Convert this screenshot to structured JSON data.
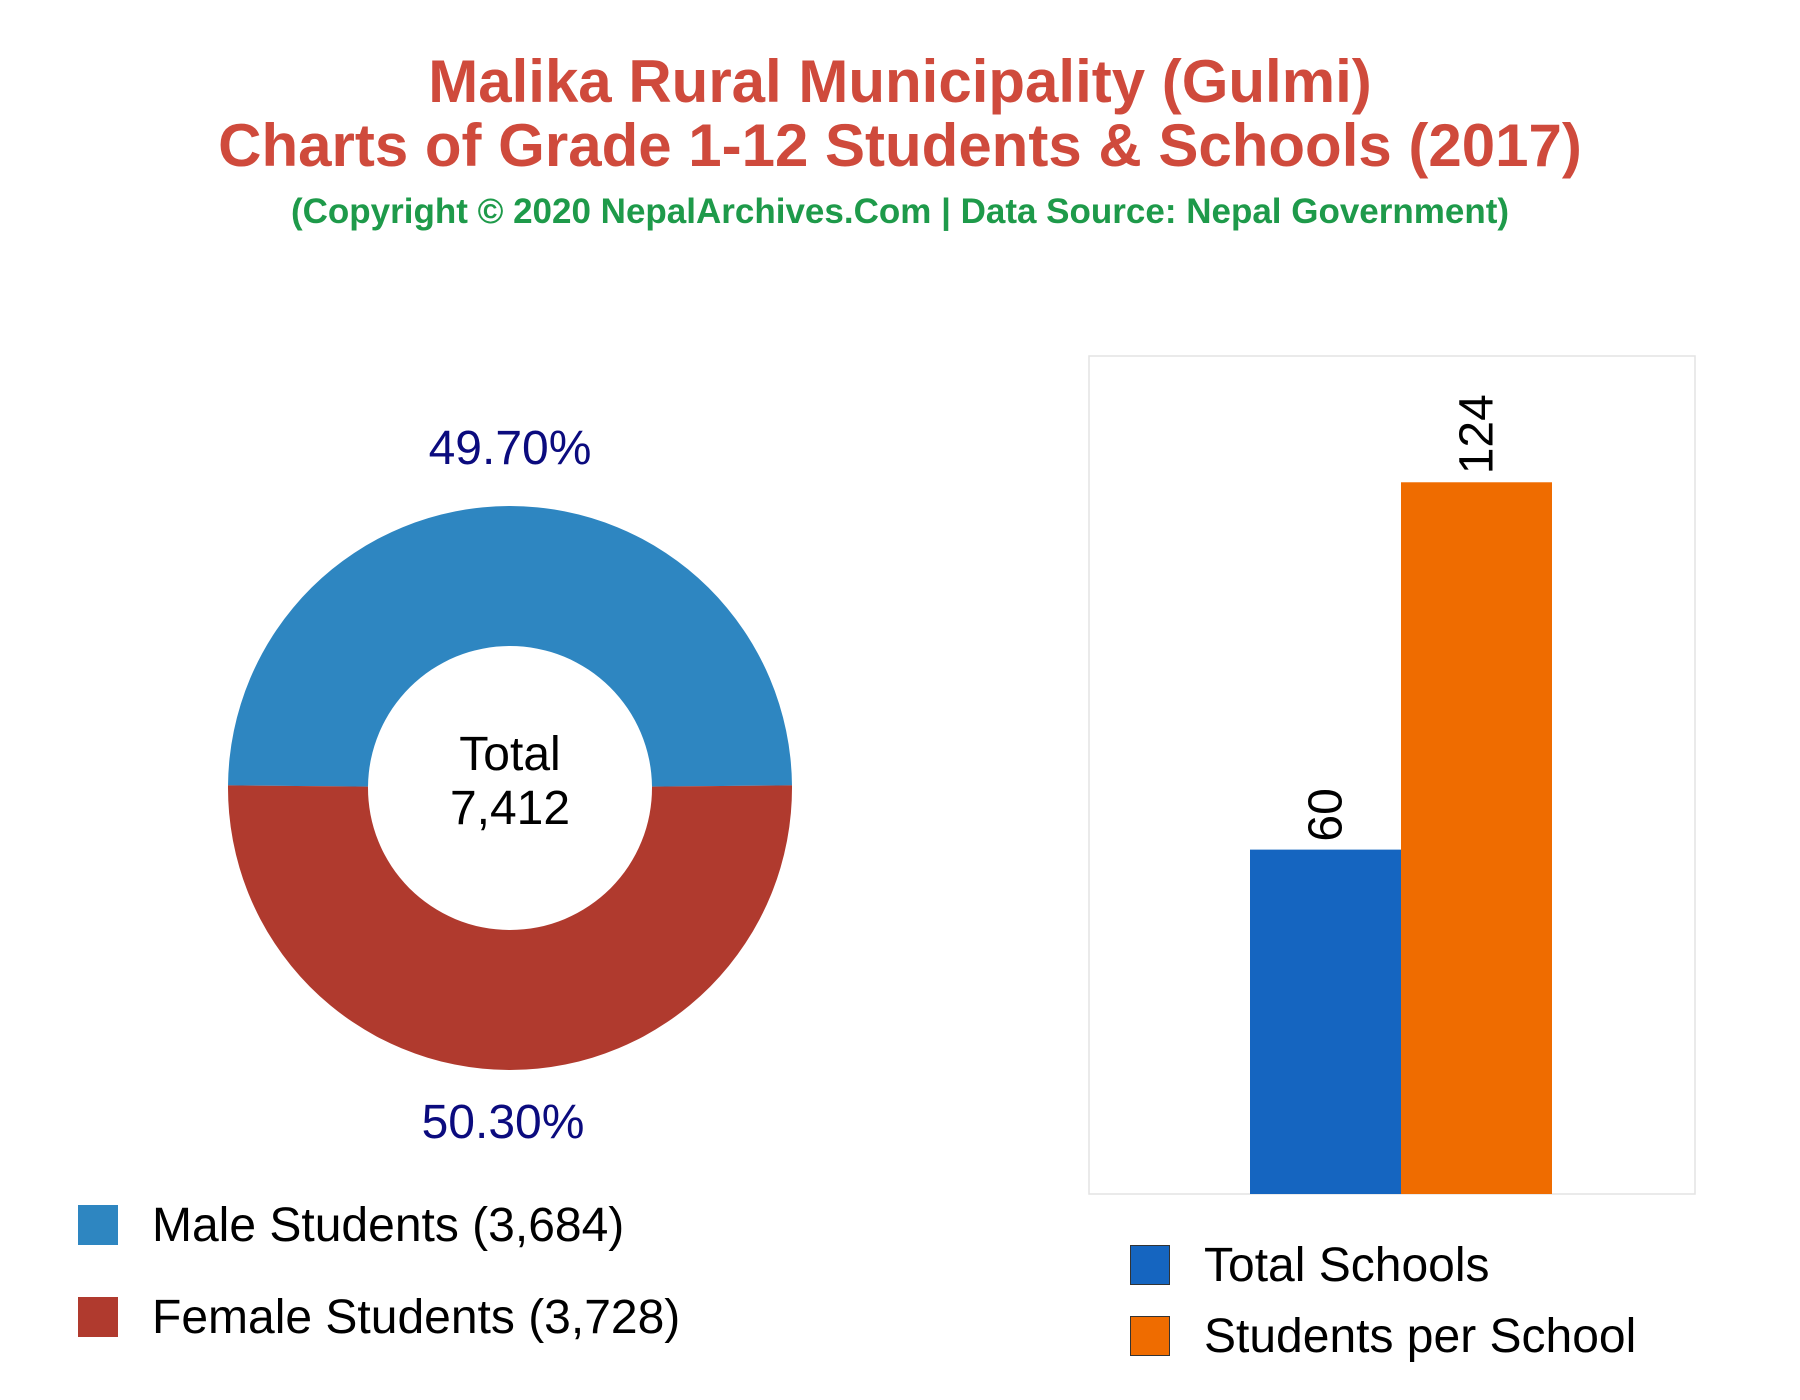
{
  "title": {
    "line1": "Malika Rural Municipality (Gulmi)",
    "line2": "Charts of Grade 1-12 Students & Schools (2017)",
    "subtitle": "(Copyright © 2020 NepalArchives.Com | Data Source: Nepal Government)"
  },
  "chart_data": [
    {
      "type": "pie",
      "variant": "donut",
      "center_label": "Total",
      "center_value": "7,412",
      "slices": [
        {
          "label": "Male Students (3,684)",
          "value": 3684,
          "percent_label": "49.70%",
          "color": "#2e86c1"
        },
        {
          "label": "Female Students (3,728)",
          "value": 3728,
          "percent_label": "50.30%",
          "color": "#b03a2e"
        }
      ],
      "percent_label_color": "#0b0b7e",
      "legend_position": "bottom-left"
    },
    {
      "type": "bar",
      "categories": [
        "Total Schools",
        "Students per School"
      ],
      "values": [
        60,
        124
      ],
      "value_labels": [
        "60",
        "124"
      ],
      "colors": [
        "#1565c0",
        "#ef6c00"
      ],
      "ylim": [
        0,
        146
      ],
      "grid": false,
      "legend_position": "bottom"
    }
  ]
}
